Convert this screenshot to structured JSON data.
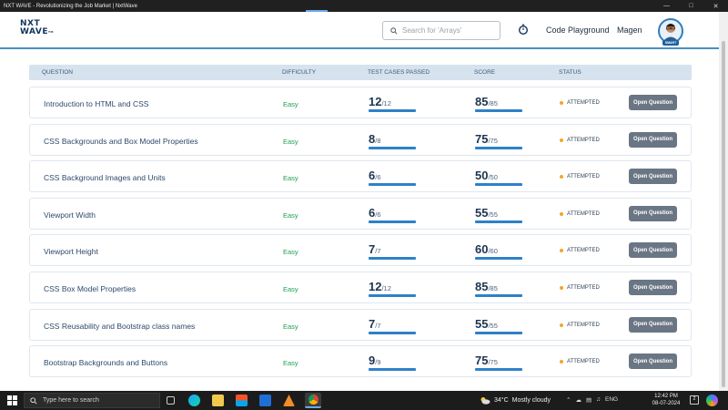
{
  "window": {
    "title": "NXT WAVE - Revolutionizing the Job Market | NxtWave",
    "controls": [
      "minimize-icon",
      "maximize-icon",
      "close-icon"
    ]
  },
  "header": {
    "logo_line1": "NXT",
    "logo_line2": "WAVE",
    "logo_tm": "TM",
    "search_placeholder": "Search for 'Arrays'",
    "code_playground": "Code Playground",
    "user_name": "Magen",
    "avatar_badge": "SMART"
  },
  "table": {
    "headers": {
      "question": "QUESTION",
      "difficulty": "DIFFICULTY",
      "test_cases": "TEST CASES PASSED",
      "score": "SCORE",
      "status": "STATUS"
    },
    "rows": [
      {
        "question": "Introduction to HTML and CSS",
        "difficulty": "Easy",
        "tc_passed": "12",
        "tc_total": "/12",
        "score": "85",
        "score_total": "/85",
        "status": "ATTEMPTED",
        "button": "Open Question"
      },
      {
        "question": "CSS Backgrounds and Box Model Properties",
        "difficulty": "Easy",
        "tc_passed": "8",
        "tc_total": "/8",
        "score": "75",
        "score_total": "/75",
        "status": "ATTEMPTED",
        "button": "Open Question"
      },
      {
        "question": "CSS Background Images and Units",
        "difficulty": "Easy",
        "tc_passed": "6",
        "tc_total": "/6",
        "score": "50",
        "score_total": "/50",
        "status": "ATTEMPTED",
        "button": "Open Question"
      },
      {
        "question": "Viewport Width",
        "difficulty": "Easy",
        "tc_passed": "6",
        "tc_total": "/6",
        "score": "55",
        "score_total": "/55",
        "status": "ATTEMPTED",
        "button": "Open Question"
      },
      {
        "question": "Viewport Height",
        "difficulty": "Easy",
        "tc_passed": "7",
        "tc_total": "/7",
        "score": "60",
        "score_total": "/60",
        "status": "ATTEMPTED",
        "button": "Open Question"
      },
      {
        "question": "CSS Box Model Properties",
        "difficulty": "Easy",
        "tc_passed": "12",
        "tc_total": "/12",
        "score": "85",
        "score_total": "/85",
        "status": "ATTEMPTED",
        "button": "Open Question"
      },
      {
        "question": "CSS Reusability and Bootstrap class names",
        "difficulty": "Easy",
        "tc_passed": "7",
        "tc_total": "/7",
        "score": "55",
        "score_total": "/55",
        "status": "ATTEMPTED",
        "button": "Open Question"
      },
      {
        "question": "Bootstrap Backgrounds and Buttons",
        "difficulty": "Easy",
        "tc_passed": "9",
        "tc_total": "/9",
        "score": "75",
        "score_total": "/75",
        "status": "ATTEMPTED",
        "button": "Open Question"
      }
    ],
    "progress_fraction": 1.0
  },
  "colors": {
    "accent": "#2f80c7",
    "easy": "#1f9d55",
    "attempted_dot": "#f5a623",
    "button_bg": "#6b7684",
    "header_bg": "#d6e2ee"
  },
  "taskbar": {
    "search_placeholder": "Type here to search",
    "weather_temp": "34°C",
    "weather_desc": "Mostly cloudy",
    "language": "ENG",
    "time": "12:42 PM",
    "date": "08-07-2024",
    "notifications": "2",
    "apps": [
      "task-view-icon",
      "edge-icon",
      "file-explorer-icon",
      "store-icon",
      "mail-icon",
      "vlc-icon",
      "chrome-icon"
    ]
  }
}
